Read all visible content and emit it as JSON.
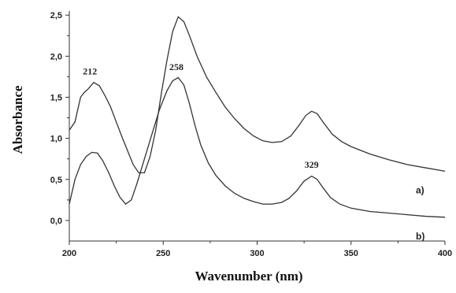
{
  "chart_data": {
    "type": "line",
    "xlabel": "Wavenumber (nm)",
    "ylabel": "Absorbance",
    "xlim": [
      200,
      400
    ],
    "ylim": [
      -0.25,
      2.55
    ],
    "xticks": [
      200,
      250,
      300,
      350,
      400
    ],
    "xtick_labels": [
      "200",
      "250",
      "300",
      "350",
      "400"
    ],
    "yticks": [
      0.0,
      0.5,
      1.0,
      1.5,
      2.0,
      2.5
    ],
    "ytick_labels": [
      "0,0",
      "0,5",
      "1,0",
      "1,5",
      "2,0",
      "2,5"
    ],
    "grid": false,
    "series": [
      {
        "name": "a)",
        "points": [
          [
            200,
            1.1
          ],
          [
            203,
            1.2
          ],
          [
            206,
            1.5
          ],
          [
            208,
            1.56
          ],
          [
            210,
            1.6
          ],
          [
            213,
            1.68
          ],
          [
            216,
            1.64
          ],
          [
            219,
            1.52
          ],
          [
            222,
            1.38
          ],
          [
            225,
            1.2
          ],
          [
            228,
            1.02
          ],
          [
            231,
            0.85
          ],
          [
            234,
            0.68
          ],
          [
            237,
            0.58
          ],
          [
            240,
            0.58
          ],
          [
            243,
            0.78
          ],
          [
            246,
            1.1
          ],
          [
            249,
            1.55
          ],
          [
            252,
            1.95
          ],
          [
            255,
            2.3
          ],
          [
            258,
            2.48
          ],
          [
            261,
            2.42
          ],
          [
            264,
            2.25
          ],
          [
            268,
            2.0
          ],
          [
            273,
            1.75
          ],
          [
            278,
            1.56
          ],
          [
            283,
            1.38
          ],
          [
            288,
            1.24
          ],
          [
            293,
            1.12
          ],
          [
            298,
            1.03
          ],
          [
            303,
            0.97
          ],
          [
            308,
            0.95
          ],
          [
            313,
            0.96
          ],
          [
            318,
            1.03
          ],
          [
            322,
            1.15
          ],
          [
            326,
            1.28
          ],
          [
            329,
            1.33
          ],
          [
            332,
            1.3
          ],
          [
            335,
            1.2
          ],
          [
            340,
            1.05
          ],
          [
            345,
            0.96
          ],
          [
            350,
            0.9
          ],
          [
            360,
            0.81
          ],
          [
            370,
            0.74
          ],
          [
            380,
            0.68
          ],
          [
            390,
            0.64
          ],
          [
            400,
            0.6
          ]
        ]
      },
      {
        "name": "b)",
        "points": [
          [
            200,
            0.2
          ],
          [
            203,
            0.5
          ],
          [
            206,
            0.68
          ],
          [
            209,
            0.78
          ],
          [
            212,
            0.83
          ],
          [
            215,
            0.82
          ],
          [
            218,
            0.72
          ],
          [
            221,
            0.58
          ],
          [
            224,
            0.42
          ],
          [
            227,
            0.28
          ],
          [
            230,
            0.2
          ],
          [
            233,
            0.25
          ],
          [
            236,
            0.45
          ],
          [
            240,
            0.75
          ],
          [
            244,
            1.05
          ],
          [
            248,
            1.35
          ],
          [
            252,
            1.58
          ],
          [
            255,
            1.7
          ],
          [
            258,
            1.74
          ],
          [
            261,
            1.65
          ],
          [
            264,
            1.42
          ],
          [
            267,
            1.15
          ],
          [
            270,
            0.92
          ],
          [
            274,
            0.7
          ],
          [
            278,
            0.55
          ],
          [
            283,
            0.42
          ],
          [
            288,
            0.33
          ],
          [
            293,
            0.27
          ],
          [
            298,
            0.23
          ],
          [
            303,
            0.2
          ],
          [
            308,
            0.2
          ],
          [
            313,
            0.22
          ],
          [
            317,
            0.27
          ],
          [
            321,
            0.36
          ],
          [
            325,
            0.48
          ],
          [
            329,
            0.54
          ],
          [
            332,
            0.5
          ],
          [
            335,
            0.4
          ],
          [
            339,
            0.28
          ],
          [
            344,
            0.2
          ],
          [
            350,
            0.15
          ],
          [
            360,
            0.11
          ],
          [
            370,
            0.09
          ],
          [
            380,
            0.07
          ],
          [
            390,
            0.05
          ],
          [
            400,
            0.04
          ]
        ]
      }
    ],
    "annotations": [
      {
        "text": "212",
        "x": 211,
        "y": 1.78
      },
      {
        "text": "258",
        "x": 257,
        "y": 1.83
      },
      {
        "text": "329",
        "x": 329,
        "y": 0.64
      }
    ]
  }
}
